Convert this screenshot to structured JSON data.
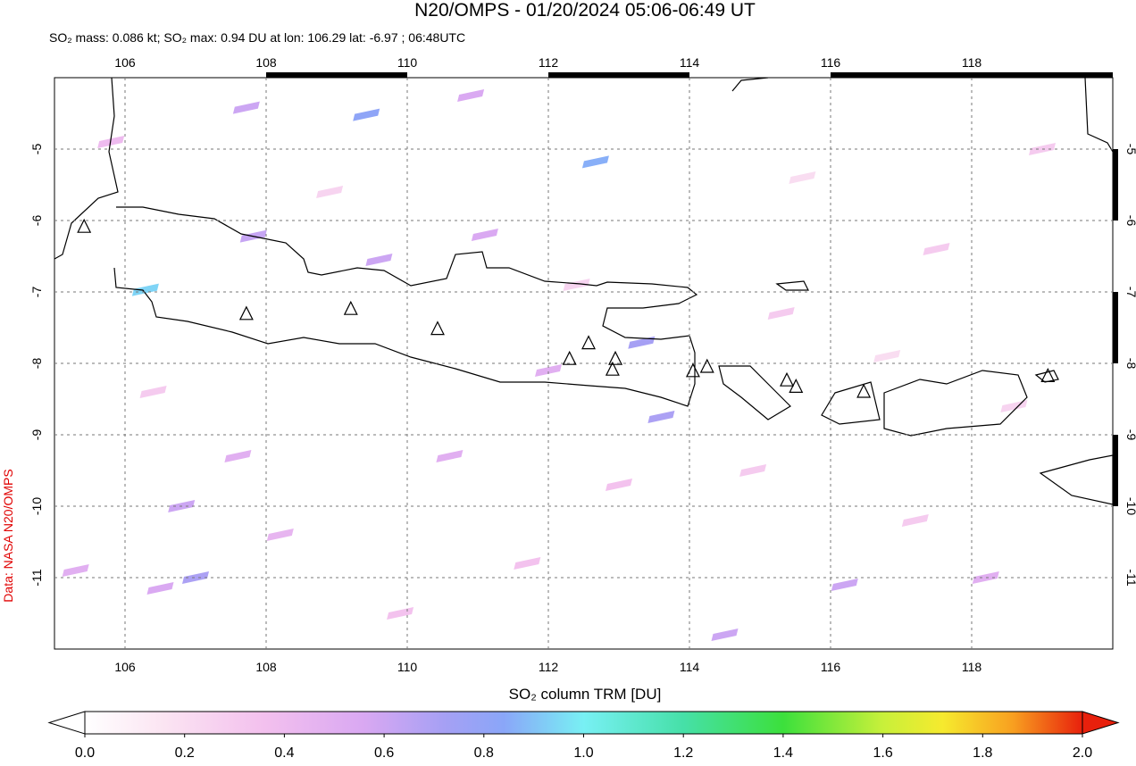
{
  "chart_data": {
    "type": "map",
    "title": "N20/OMPS - 01/20/2024 05:06-06:49 UT",
    "subtitle": "SO₂ mass: 0.086 kt; SO₂ max: 0.94 DU at lon: 106.29 lat: -6.97 ; 06:48UTC",
    "credit": "Data: NASA N20/OMPS",
    "xlim": [
      105,
      120
    ],
    "ylim": [
      -12,
      -4
    ],
    "xticks": [
      106,
      108,
      110,
      112,
      114,
      116,
      118
    ],
    "yticks": [
      -5,
      -6,
      -7,
      -8,
      -9,
      -10,
      -11
    ],
    "grid": true,
    "pixels": {
      "lon": [
        106.29,
        109.42,
        112.67,
        113.6,
        113.32,
        107.82,
        109.6,
        107.72,
        110.9,
        111.1,
        106.8,
        107.0,
        105.3,
        106.5,
        114.5,
        116.2,
        118.2,
        107.6,
        110.6,
        112.0,
        108.2,
        113.0,
        115.3,
        117.5,
        119.0,
        105.8,
        108.9,
        111.7,
        114.9,
        116.8,
        118.6,
        106.4,
        109.9,
        112.4,
        115.6,
        117.2
      ],
      "lat": [
        -6.97,
        -4.52,
        -5.18,
        -8.75,
        -7.71,
        -6.22,
        -6.55,
        -4.42,
        -4.25,
        -6.2,
        -10.0,
        -11.0,
        -10.9,
        -11.15,
        -11.8,
        -11.1,
        -11.0,
        -9.3,
        -9.3,
        -8.1,
        -10.4,
        -9.7,
        -7.3,
        -6.4,
        -5.0,
        -4.9,
        -5.6,
        -10.8,
        -9.5,
        -7.9,
        -8.6,
        -8.4,
        -11.5,
        -6.9,
        -5.4,
        -10.2
      ],
      "values": [
        0.94,
        0.82,
        0.86,
        0.7,
        0.72,
        0.62,
        0.6,
        0.6,
        0.55,
        0.55,
        0.6,
        0.7,
        0.5,
        0.55,
        0.6,
        0.6,
        0.5,
        0.5,
        0.5,
        0.5,
        0.45,
        0.35,
        0.3,
        0.3,
        0.3,
        0.4,
        0.25,
        0.35,
        0.3,
        0.2,
        0.25,
        0.3,
        0.35,
        0.25,
        0.2,
        0.3
      ]
    },
    "volcanoes": {
      "lon": [
        105.42,
        107.72,
        109.2,
        110.43,
        112.3,
        112.57,
        112.95,
        112.91,
        114.05,
        114.25,
        115.38,
        115.51,
        116.47,
        119.08
      ],
      "lat": [
        -6.09,
        -7.31,
        -7.24,
        -7.52,
        -7.94,
        -7.72,
        -7.94,
        -8.09,
        -8.11,
        -8.05,
        -8.24,
        -8.33,
        -8.4,
        -8.18
      ]
    },
    "colorbar": {
      "label": "SO₂ column TRM [DU]",
      "lim": [
        0,
        2
      ],
      "ticks": [
        {
          "value": 0,
          "label": "0.0"
        },
        0.2,
        0.4,
        0.6,
        0.8,
        {
          "value": 1,
          "label": "1.0"
        },
        1.2,
        1.4,
        1.6,
        1.8,
        {
          "value": 2,
          "label": "2.0"
        }
      ]
    }
  }
}
